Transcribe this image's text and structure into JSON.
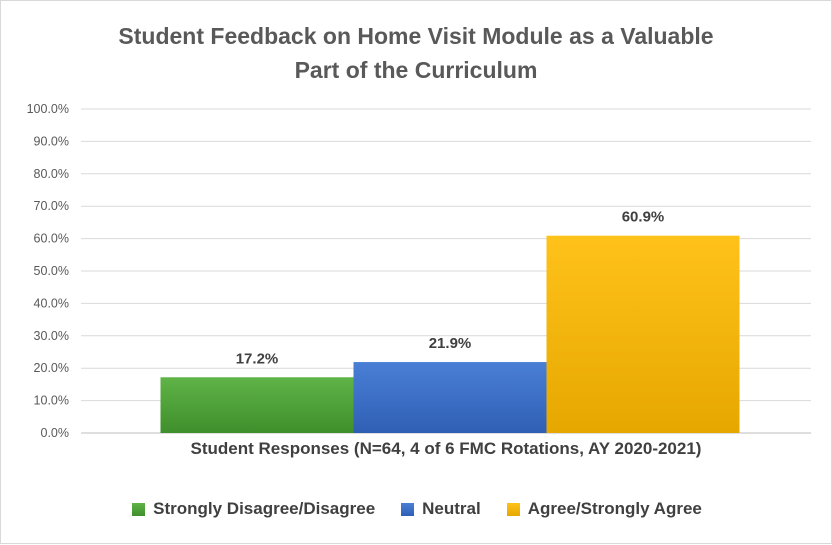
{
  "chart_data": {
    "type": "bar",
    "title_lines": [
      "Student Feedback on Home Visit Module as a Valuable",
      "Part of the Curriculum"
    ],
    "xlabel": "Student Responses (N=64, 4 of 6 FMC Rotations, AY 2020-2021)",
    "ylabel": "",
    "ylim": [
      0,
      100
    ],
    "yticks": [
      "0.0%",
      "10.0%",
      "20.0%",
      "30.0%",
      "40.0%",
      "50.0%",
      "60.0%",
      "70.0%",
      "80.0%",
      "90.0%",
      "100.0%"
    ],
    "grid": true,
    "legend_position": "bottom",
    "series": [
      {
        "name": "Strongly Disagree/Disagree",
        "values": [
          17.2
        ],
        "label": "17.2%",
        "color": "#5fb347",
        "color_dark": "#3f8f2c"
      },
      {
        "name": "Neutral",
        "values": [
          21.9
        ],
        "label": "21.9%",
        "color": "#4a7fd6",
        "color_dark": "#2f5fb5"
      },
      {
        "name": "Agree/Strongly Agree",
        "values": [
          60.9
        ],
        "label": "60.9%",
        "color": "#ffc21a",
        "color_dark": "#e6a800"
      }
    ]
  }
}
